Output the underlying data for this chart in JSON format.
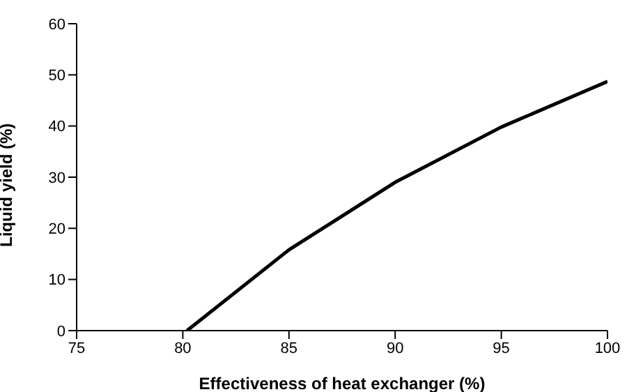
{
  "chart_data": {
    "type": "line",
    "xlabel": "Effectiveness of heat exchanger (%)",
    "ylabel": "Liquid yield (%)",
    "x": [
      80.2,
      85,
      90,
      95,
      100
    ],
    "series": [
      {
        "color": "#000000",
        "values": [
          0,
          15.8,
          29,
          39.8,
          48.7
        ]
      }
    ],
    "xlim": [
      75,
      100
    ],
    "xticks": [
      75,
      80,
      85,
      90,
      95,
      100
    ],
    "ylim": [
      0,
      60
    ],
    "yticks": [
      0,
      10,
      20,
      30,
      40,
      50,
      60
    ],
    "grid": false,
    "legend": false,
    "marker": "none",
    "line_style": "solid"
  }
}
